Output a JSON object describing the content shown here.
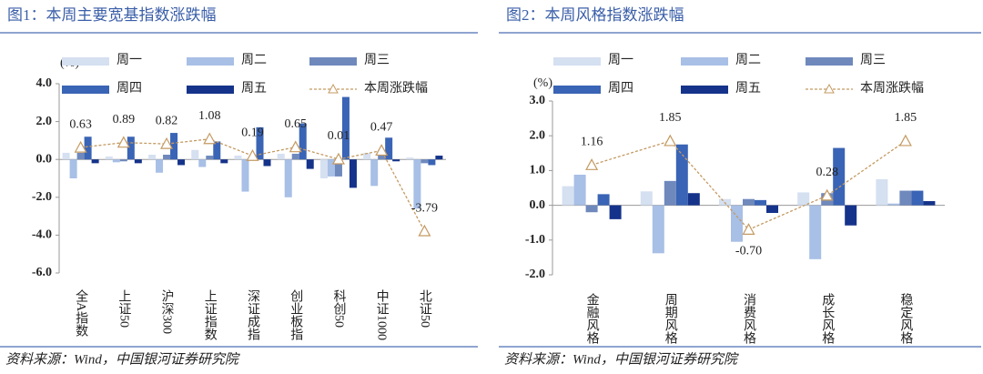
{
  "chart_data": [
    {
      "type": "bar",
      "title": "图1：本周主要宽基指数涨跌幅",
      "y_unit": "(%)",
      "source": "资料来源：Wind，中国银河证券研究院",
      "categories": [
        "全A指数",
        "上证50",
        "沪深300",
        "上证指数",
        "深证成指",
        "创业板指",
        "科创50",
        "中证1000",
        "北证50"
      ],
      "ylim": [
        -6,
        4
      ],
      "yticks": [
        {
          "value": 4,
          "label": "4.0"
        },
        {
          "value": 2,
          "label": "2.0"
        },
        {
          "value": 0,
          "label": "0.0"
        },
        {
          "value": -2,
          "label": "-2.0"
        },
        {
          "value": -4,
          "label": "-4.0"
        },
        {
          "value": -6,
          "label": "-6.0"
        }
      ],
      "series": [
        {
          "name": "周一",
          "color": "#d5e0f1",
          "values": [
            0.35,
            0.15,
            0.25,
            0.5,
            0.2,
            0.3,
            -1.0,
            0.35,
            0.1
          ]
        },
        {
          "name": "周二",
          "color": "#a8bfe6",
          "values": [
            -1.0,
            -0.15,
            -0.7,
            -0.4,
            -1.7,
            -2.0,
            -0.9,
            -1.4,
            -2.6
          ]
        },
        {
          "name": "周三",
          "color": "#6f89bd",
          "values": [
            0.35,
            -0.1,
            0.25,
            0.2,
            0.1,
            0.3,
            -0.9,
            0.4,
            -0.2
          ]
        },
        {
          "name": "周四",
          "color": "#3a64b5",
          "values": [
            1.2,
            1.2,
            1.4,
            0.95,
            1.7,
            1.9,
            3.3,
            1.15,
            -0.3
          ]
        },
        {
          "name": "周五",
          "color": "#15338a",
          "values": [
            -0.2,
            -0.2,
            -0.3,
            -0.2,
            -0.35,
            -0.5,
            -1.5,
            -0.1,
            0.2
          ]
        },
        {
          "name": "本周涨跌幅",
          "type": "line",
          "color": "#c49a62",
          "values": [
            0.63,
            0.89,
            0.82,
            1.08,
            0.19,
            0.65,
            0.01,
            0.47,
            -3.79
          ],
          "value_labels": [
            "0.63",
            "0.89",
            "0.82",
            "1.08",
            "0.19",
            "0.65",
            "0.01",
            "0.47",
            "-3.79"
          ]
        }
      ]
    },
    {
      "type": "bar",
      "title": "图2：本周风格指数涨跌幅",
      "y_unit": "(%)",
      "source": "资料来源：Wind，中国银河证券研究院",
      "categories": [
        "金融风格",
        "周期风格",
        "消费风格",
        "成长风格",
        "稳定风格"
      ],
      "ylim": [
        -2,
        3
      ],
      "yticks": [
        {
          "value": 3,
          "label": "3.0"
        },
        {
          "value": 2,
          "label": "2.0"
        },
        {
          "value": 1,
          "label": "1.0"
        },
        {
          "value": 0,
          "label": "0.0"
        },
        {
          "value": -1,
          "label": "-1.0"
        },
        {
          "value": -2,
          "label": "-2.0"
        }
      ],
      "series": [
        {
          "name": "周一",
          "color": "#d5e0f1",
          "values": [
            0.55,
            0.4,
            0.18,
            0.37,
            0.75
          ]
        },
        {
          "name": "周二",
          "color": "#a8bfe6",
          "values": [
            0.88,
            -1.38,
            -1.05,
            -1.55,
            0.05
          ]
        },
        {
          "name": "周三",
          "color": "#6f89bd",
          "values": [
            -0.2,
            0.7,
            0.18,
            0.35,
            0.42
          ]
        },
        {
          "name": "周四",
          "color": "#3a64b5",
          "values": [
            0.32,
            1.75,
            0.15,
            1.65,
            0.42
          ]
        },
        {
          "name": "周五",
          "color": "#15338a",
          "values": [
            -0.4,
            0.35,
            -0.22,
            -0.58,
            0.12
          ]
        },
        {
          "name": "本周涨跌幅",
          "type": "line",
          "color": "#c49a62",
          "values": [
            1.16,
            1.85,
            -0.7,
            0.28,
            1.85
          ],
          "value_labels": [
            "1.16",
            "1.85",
            "-0.70",
            "0.28",
            "1.85"
          ]
        }
      ]
    }
  ]
}
